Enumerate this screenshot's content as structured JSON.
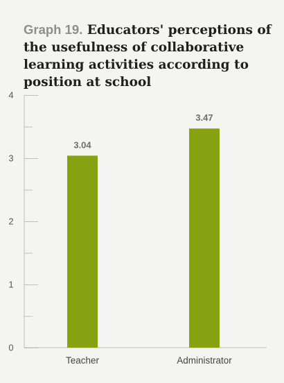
{
  "title_prefix": "Graph 19.",
  "title_text": " Educators' perceptions of the usefulness of collaborative learning activities according to position at school",
  "colors": {
    "bar": "#86a210",
    "axis": "#bdbdbd",
    "tick_text": "#555555",
    "value_label": "#6e6e6e"
  },
  "chart_data": {
    "type": "bar",
    "title": "Educators' perceptions of the usefulness of collaborative learning activities according to position at school",
    "categories": [
      "Teacher",
      "Administrator"
    ],
    "values": [
      3.04,
      3.47
    ],
    "value_labels": [
      "3.04",
      "3.47"
    ],
    "xlabel": "",
    "ylabel": "",
    "ylim": [
      0,
      4
    ],
    "yticks": [
      "0",
      "1",
      "2",
      "3",
      "4"
    ],
    "minor_ticks": [
      0.5,
      1.5,
      2.5,
      3.5
    ],
    "grid": false,
    "legend": "none"
  }
}
